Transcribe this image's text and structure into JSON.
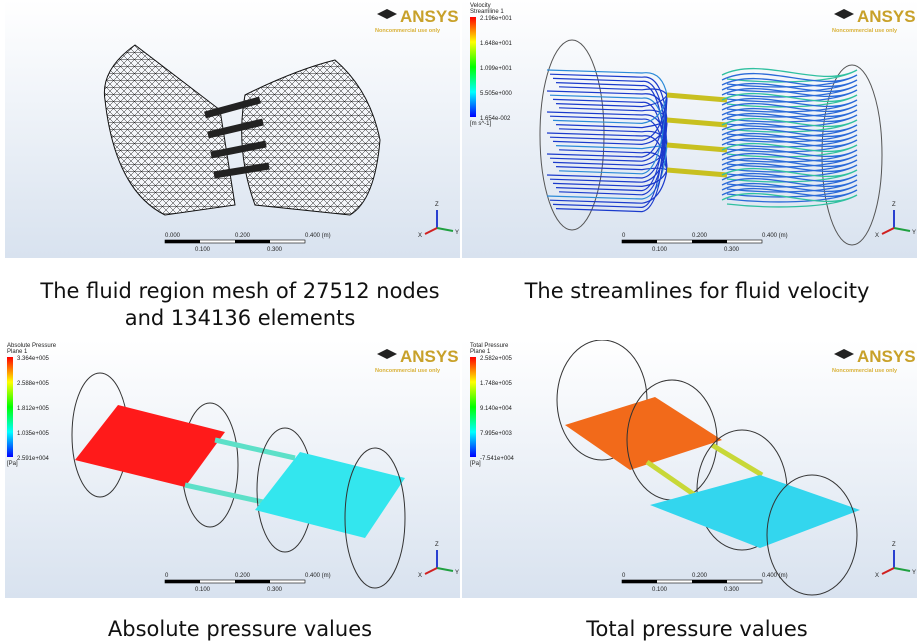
{
  "logo": {
    "name": "ANSYS",
    "note": "Noncommercial use only"
  },
  "triad": [
    "Z",
    "Y",
    "X"
  ],
  "panels": [
    {
      "caption": [
        "The fluid region mesh of 27512 nodes",
        "and 134136 elements"
      ],
      "scale": {
        "top": [
          "0.000",
          "0.200",
          "0.400 (m)"
        ],
        "bottom": [
          "0.100",
          "0.300"
        ]
      }
    },
    {
      "caption": [
        "The streamlines for fluid velocity"
      ],
      "legend": {
        "title": "Velocity",
        "subtitle": "Streamline 1",
        "labels": [
          "2.196e+001",
          "1.648e+001",
          "1.099e+001",
          "5.505e+000",
          "1.654e-002"
        ],
        "unit": "[m s^-1]"
      },
      "scale": {
        "top": [
          "0",
          "0.200",
          "0.400 (m)"
        ],
        "bottom": [
          "0.100",
          "0.300"
        ]
      }
    },
    {
      "caption": [
        "Absolute pressure values"
      ],
      "legend": {
        "title": "Absolute Pressure",
        "subtitle": "Plane 1",
        "labels": [
          "3.364e+005",
          "2.588e+005",
          "1.812e+005",
          "1.035e+005",
          "2.591e+004"
        ],
        "unit": "[Pa]"
      },
      "scale": {
        "top": [
          "0",
          "0.200",
          "0.400 (m)"
        ],
        "bottom": [
          "0.100",
          "0.300"
        ]
      }
    },
    {
      "caption": [
        "Total pressure values"
      ],
      "legend": {
        "title": "Total Pressure",
        "subtitle": "Plane 1",
        "labels": [
          "2.582e+005",
          "1.748e+005",
          "9.140e+004",
          "7.995e+003",
          "-7.541e+004"
        ],
        "unit": "[Pa]"
      },
      "scale": {
        "top": [
          "0",
          "0.200",
          "0.400 (m)"
        ],
        "bottom": [
          "0.100",
          "0.300"
        ]
      }
    }
  ]
}
